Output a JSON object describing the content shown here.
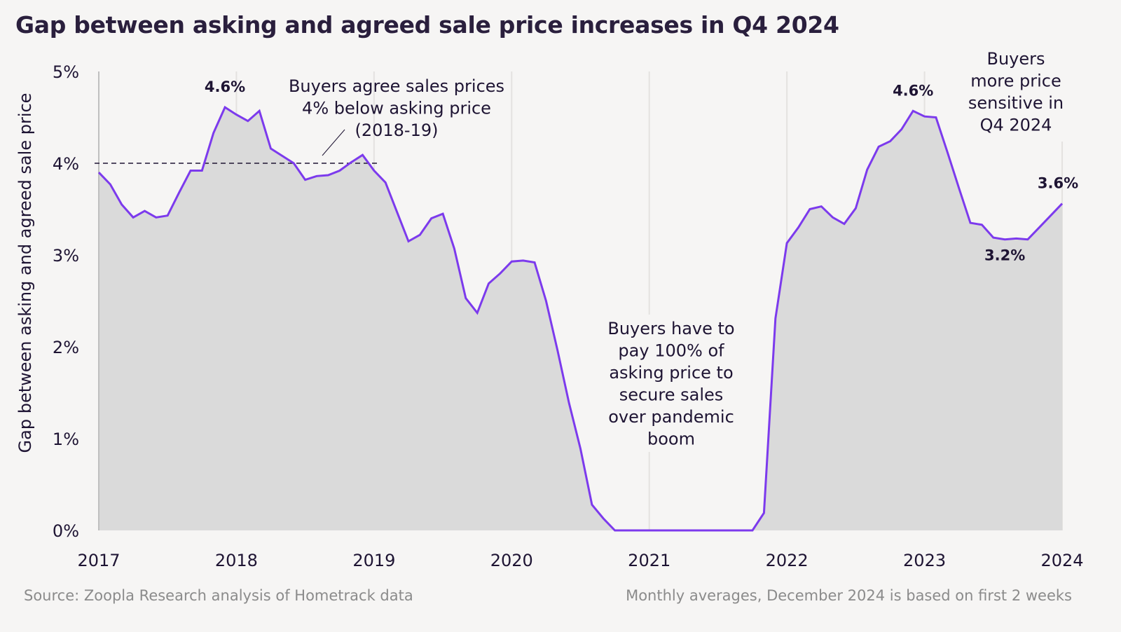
{
  "chart_data": {
    "type": "area",
    "title": "Gap between asking and agreed sale price increases in Q4 2024",
    "xlabel": "",
    "ylabel": "Gap between asking and agreed sale price",
    "ylim": [
      0,
      5
    ],
    "yticks": [
      "0%",
      "1%",
      "2%",
      "3%",
      "4%",
      "5%"
    ],
    "ytick_values": [
      0,
      1,
      2,
      3,
      4,
      5
    ],
    "xticks": [
      "2017",
      "2018",
      "2019",
      "2020",
      "2021",
      "2022",
      "2023",
      "2024"
    ],
    "x_start": "2017",
    "x_unit": "month",
    "grid": "vertical",
    "series": [
      {
        "name": "Gap between asking and agreed sale price (%)",
        "color": "#7c3aed",
        "fill": "#dadada",
        "values": [
          3.9,
          3.77,
          3.55,
          3.41,
          3.48,
          3.41,
          3.43,
          3.68,
          3.92,
          3.92,
          4.33,
          4.61,
          4.53,
          4.46,
          4.57,
          4.16,
          4.08,
          4.0,
          3.82,
          3.86,
          3.87,
          3.92,
          4.01,
          4.09,
          3.92,
          3.79,
          3.47,
          3.15,
          3.22,
          3.4,
          3.45,
          3.07,
          2.53,
          2.37,
          2.69,
          2.8,
          2.93,
          2.94,
          2.92,
          2.5,
          1.96,
          1.39,
          0.89,
          0.28,
          0.13,
          0.0,
          0.0,
          0.0,
          0.0,
          0.0,
          0.0,
          0.0,
          0.0,
          0.0,
          0.0,
          0.0,
          0.0,
          0.0,
          0.19,
          2.31,
          3.13,
          3.3,
          3.5,
          3.53,
          3.41,
          3.34,
          3.51,
          3.93,
          4.18,
          4.24,
          4.37,
          4.57,
          4.51,
          4.5,
          4.12,
          3.73,
          3.35,
          3.33,
          3.19,
          3.17,
          3.18,
          3.17,
          3.3,
          3.43,
          3.56
        ]
      }
    ],
    "reference_line": {
      "value": 4.0,
      "x_from_month": 0,
      "x_to_month": 24,
      "style": "dashed"
    },
    "data_labels": [
      {
        "text": "4.6%",
        "month": 11,
        "value": 4.61,
        "position": "above"
      },
      {
        "text": "4.6%",
        "month": 71,
        "value": 4.57,
        "position": "above"
      },
      {
        "text": "3.2%",
        "month": 79,
        "value": 3.17,
        "position": "below"
      },
      {
        "text": "3.6%",
        "month": 84,
        "value": 3.56,
        "position": "above"
      }
    ],
    "annotations": [
      {
        "lines": [
          "Buyers agree sales prices",
          "4% below asking price",
          "(2018-19)"
        ],
        "anchor_month": 20,
        "anchor_value": 4.0
      },
      {
        "lines": [
          "Buyers have to",
          "pay 100% of",
          "asking price to",
          "secure sales",
          "over pandemic",
          "boom"
        ],
        "anchor_month": 50,
        "anchor_value": 2.2
      },
      {
        "lines": [
          "Buyers",
          "more price",
          "sensitive in",
          "Q4 2024"
        ],
        "anchor_month": 79,
        "anchor_value": 5.1
      }
    ]
  },
  "footer": {
    "source": "Source: Zoopla Research analysis of Hometrack data",
    "note": "Monthly averages, December 2024 is based on first 2 weeks"
  }
}
